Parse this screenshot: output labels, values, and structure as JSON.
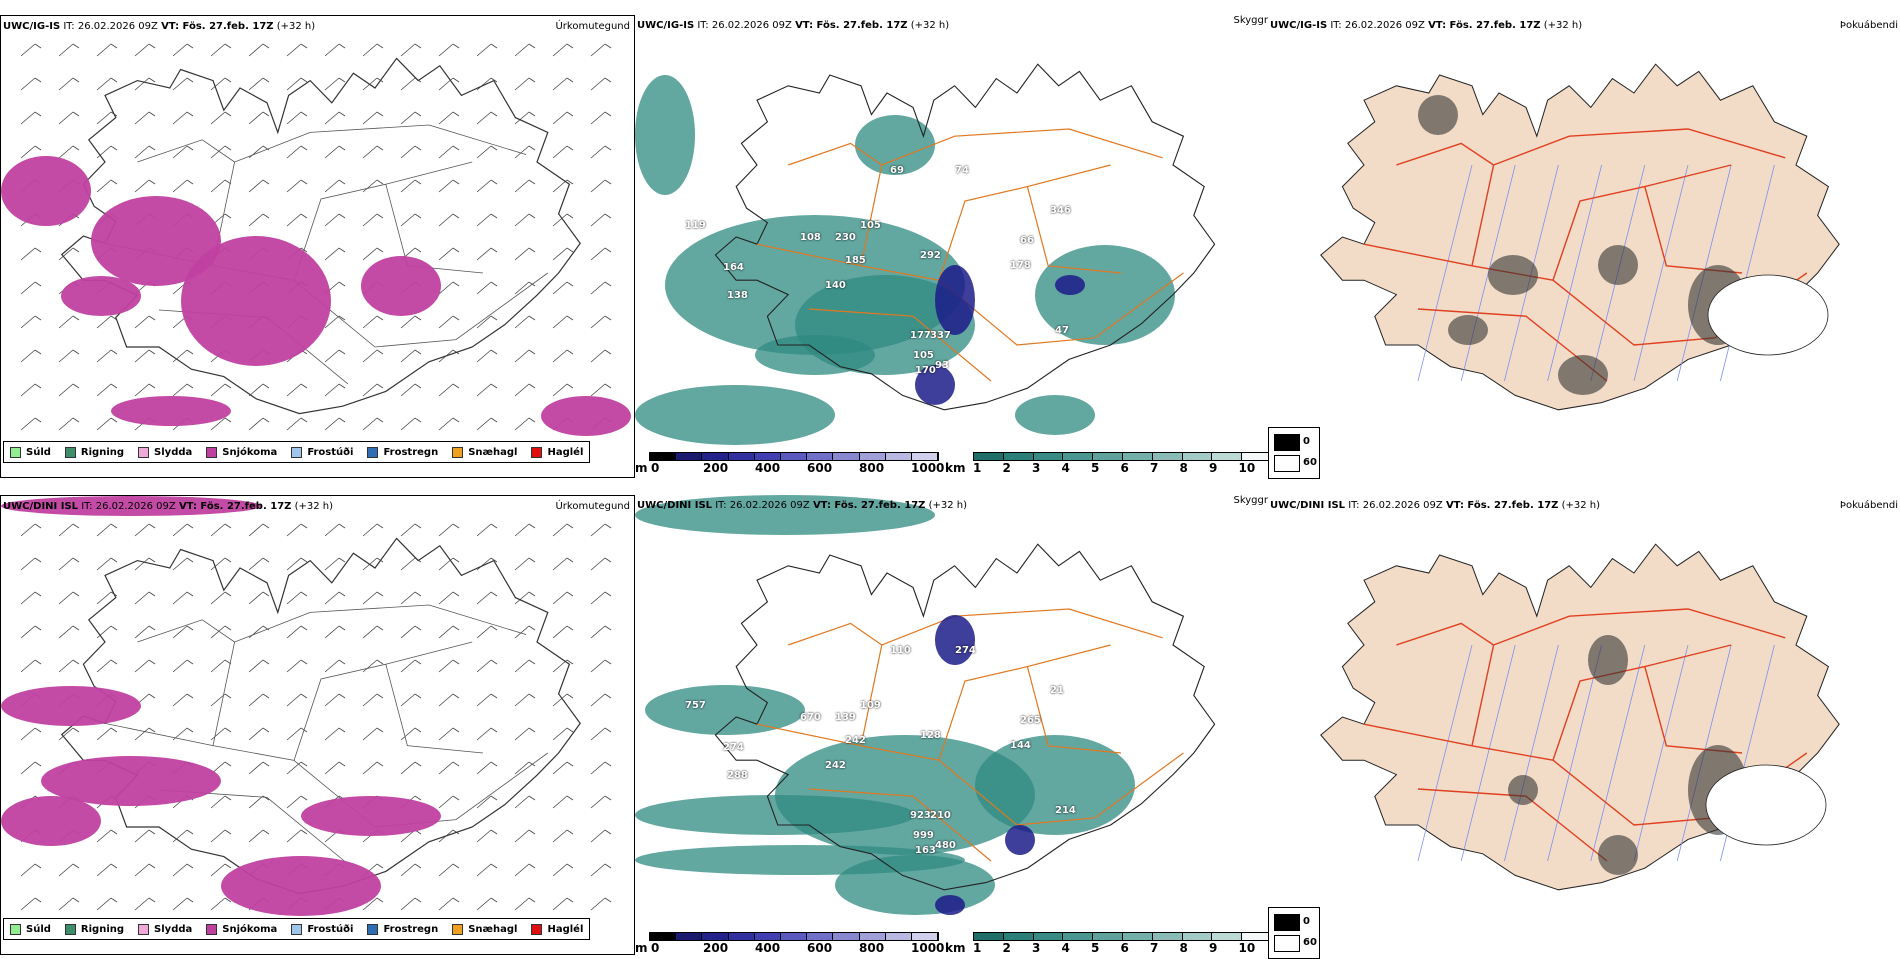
{
  "rows": [
    {
      "model": "UWC/IG-IS",
      "it": "IT: 26.02.2026 09Z",
      "vt": "VT: Fös. 27.feb. 17Z",
      "lead": "(+32 h)",
      "labels": [
        "119",
        "108",
        "230",
        "105",
        "346",
        "185",
        "292",
        "66",
        "178",
        "164",
        "138",
        "140",
        "177",
        "337",
        "105",
        "170",
        "93",
        "47",
        "69",
        "74"
      ]
    },
    {
      "model": "UWC/DINI ISL",
      "it": "IT: 26.02.2026 09Z",
      "vt": "VT: Fös. 27.feb. 17Z",
      "lead": "(+32 h)",
      "labels": [
        "757",
        "670",
        "139",
        "109",
        "21",
        "242",
        "128",
        "265",
        "144",
        "274",
        "288",
        "242",
        "923",
        "210",
        "999",
        "163",
        "480",
        "214",
        "110",
        "274"
      ]
    }
  ],
  "titles": {
    "precip": "Úrkomutegund",
    "vis": "Skyggni",
    "fog": "Þokuábendi"
  },
  "legend": [
    {
      "label": "Súld",
      "color": "#90ee90"
    },
    {
      "label": "Rigning",
      "color": "#3c8f6a"
    },
    {
      "label": "Slydda",
      "color": "#f0a8d8"
    },
    {
      "label": "Snjókoma",
      "color": "#c040a0"
    },
    {
      "label": "Frostúði",
      "color": "#9fc5ea"
    },
    {
      "label": "Frostregn",
      "color": "#2f6db5"
    },
    {
      "label": "Snæhagl",
      "color": "#f0a020"
    },
    {
      "label": "Haglél",
      "color": "#e01010"
    }
  ],
  "ceiling_bar": {
    "unit": "m",
    "ticks": [
      "0",
      "200",
      "400",
      "600",
      "800",
      "1000"
    ]
  },
  "vis_bar": {
    "unit": "km",
    "ticks": [
      "1",
      "2",
      "3",
      "4",
      "5",
      "6",
      "7",
      "8",
      "9",
      "10"
    ]
  },
  "fog_key": {
    "v0": "0",
    "v60": "60"
  },
  "colors": {
    "snow": "#c040a0",
    "teal": "#2f8a82",
    "navy": "#1c1c8a",
    "road": "#e07820",
    "land": "#f2dcc8",
    "river": "#8090f0",
    "roadred": "#e04020"
  }
}
